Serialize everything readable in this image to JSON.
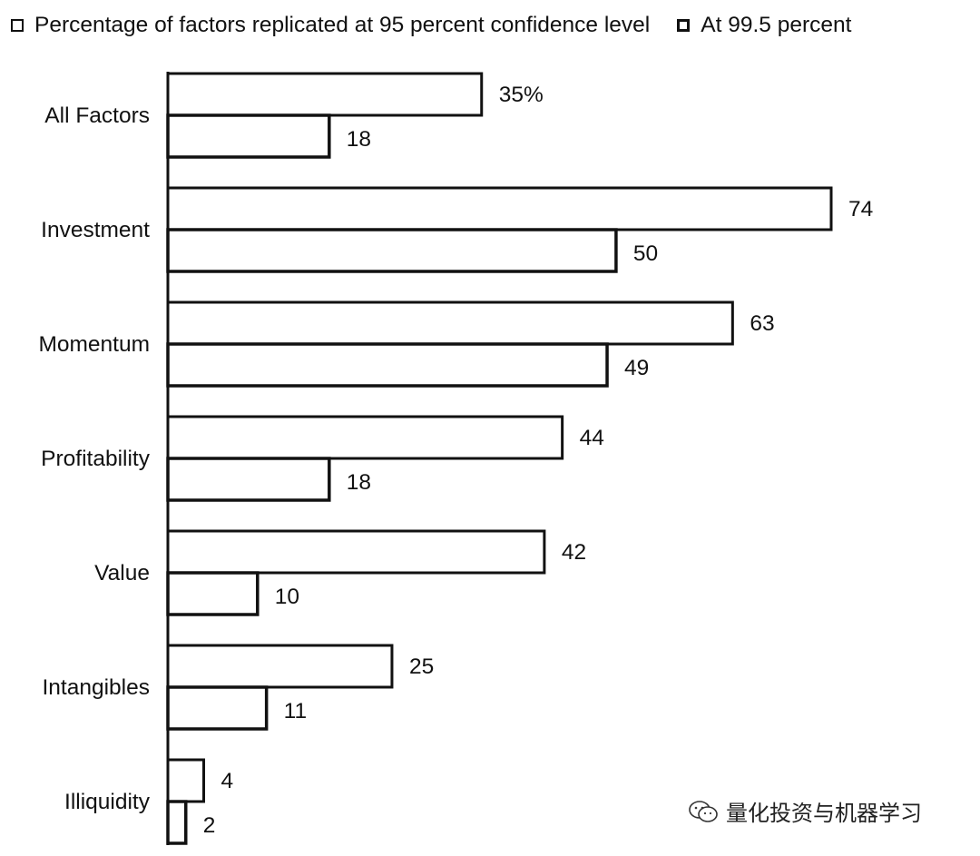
{
  "legend": {
    "items": [
      {
        "label": "Percentage of factors replicated at 95 percent confidence level"
      },
      {
        "label": "At 99.5 percent"
      }
    ]
  },
  "watermark": {
    "text": "量化投资与机器学习",
    "icon": "wechat-icon"
  },
  "chart_data": {
    "type": "bar",
    "orientation": "horizontal",
    "categories": [
      "All Factors",
      "Investment",
      "Momentum",
      "Profitability",
      "Value",
      "Intangibles",
      "Illiquidity"
    ],
    "series": [
      {
        "name": "Percentage of factors replicated at 95 percent confidence level",
        "values": [
          35,
          74,
          63,
          44,
          42,
          25,
          4
        ]
      },
      {
        "name": "At 99.5 percent",
        "values": [
          18,
          50,
          49,
          18,
          10,
          11,
          2
        ]
      }
    ],
    "value_labels": [
      [
        "35%",
        "74",
        "63",
        "44",
        "42",
        "25",
        "4"
      ],
      [
        "18",
        "50",
        "49",
        "18",
        "10",
        "11",
        "2"
      ]
    ],
    "title": "",
    "xlabel": "",
    "ylabel": "",
    "xlim": [
      0,
      74
    ],
    "grid": false,
    "legend_position": "top-left",
    "colors": {
      "bar_fill": "#ffffff",
      "bar_stroke": "#111111",
      "text": "#111111"
    }
  }
}
